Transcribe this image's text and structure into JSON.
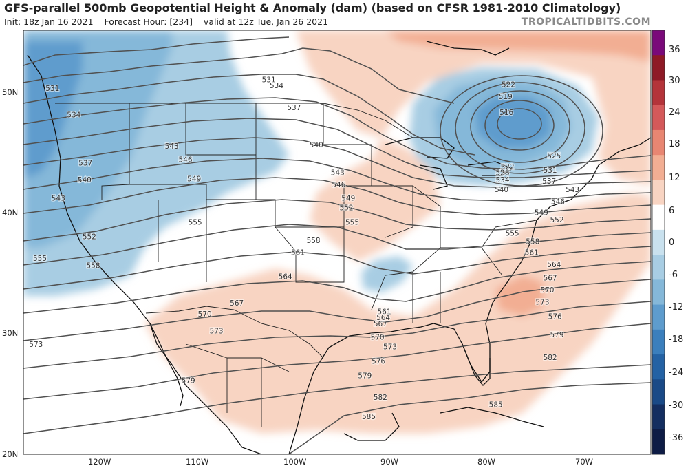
{
  "header": {
    "title": "GFS-parallel 500mb Geopotential Height & Anomaly (dam) (based on CFSR 1981-2010 Climatology)",
    "init": "Init: 18z Jan 16 2021",
    "forecast_hour": "Forecast Hour: [234]",
    "valid": "valid at 12z Tue, Jan 26 2021",
    "brand": "TROPICALTIDBITS.COM"
  },
  "axes": {
    "lat_labels": [
      "50N",
      "40N",
      "30N",
      "20N"
    ],
    "lon_labels": [
      "120W",
      "110W",
      "100W",
      "90W",
      "80W",
      "70W"
    ]
  },
  "colorbar": {
    "labels": [
      "36",
      "30",
      "24",
      "18",
      "12",
      "6",
      "0",
      "-6",
      "-12",
      "-18",
      "-24",
      "-30",
      "-36"
    ],
    "colors": [
      "#7a0a7a",
      "#8e1a26",
      "#b4343a",
      "#d4595a",
      "#e88672",
      "#f2ae93",
      "#f8d4c2",
      "#ffffff",
      "#c9e1ee",
      "#a8cde3",
      "#85b8d9",
      "#5e9ccd",
      "#3b7fbd",
      "#2462a4",
      "#1a4a87",
      "#142e60",
      "#0e1c45"
    ]
  },
  "contour_labels": [
    {
      "text": "531",
      "lon": -124.8,
      "lat": 50.6
    },
    {
      "text": "534",
      "lon": -122.6,
      "lat": 48.4
    },
    {
      "text": "537",
      "lon": -121.4,
      "lat": 44.4
    },
    {
      "text": "540",
      "lon": -121.5,
      "lat": 43.0
    },
    {
      "text": "543",
      "lon": -124.2,
      "lat": 41.5
    },
    {
      "text": "552",
      "lon": -121.0,
      "lat": 38.3
    },
    {
      "text": "555",
      "lon": -126.1,
      "lat": 36.5
    },
    {
      "text": "558",
      "lon": -120.6,
      "lat": 35.9
    },
    {
      "text": "543",
      "lon": -112.5,
      "lat": 45.8
    },
    {
      "text": "546",
      "lon": -111.1,
      "lat": 44.7
    },
    {
      "text": "549",
      "lon": -110.2,
      "lat": 43.1
    },
    {
      "text": "555",
      "lon": -110.1,
      "lat": 39.5
    },
    {
      "text": "561",
      "lon": -99.5,
      "lat": 37.0
    },
    {
      "text": "564",
      "lon": -100.8,
      "lat": 35.0
    },
    {
      "text": "567",
      "lon": -105.8,
      "lat": 32.8
    },
    {
      "text": "570",
      "lon": -109.1,
      "lat": 31.9
    },
    {
      "text": "573",
      "lon": -107.9,
      "lat": 30.5
    },
    {
      "text": "573",
      "lon": -126.5,
      "lat": 29.4
    },
    {
      "text": "579",
      "lon": -110.8,
      "lat": 26.4
    },
    {
      "text": "531",
      "lon": -102.5,
      "lat": 51.3
    },
    {
      "text": "534",
      "lon": -101.7,
      "lat": 50.8
    },
    {
      "text": "537",
      "lon": -99.9,
      "lat": 49.0
    },
    {
      "text": "540",
      "lon": -97.6,
      "lat": 45.9
    },
    {
      "text": "543",
      "lon": -95.4,
      "lat": 43.6
    },
    {
      "text": "546",
      "lon": -95.3,
      "lat": 42.6
    },
    {
      "text": "549",
      "lon": -94.3,
      "lat": 41.5
    },
    {
      "text": "552",
      "lon": -94.5,
      "lat": 40.7
    },
    {
      "text": "555",
      "lon": -93.9,
      "lat": 39.5
    },
    {
      "text": "558",
      "lon": -97.9,
      "lat": 38.0
    },
    {
      "text": "561",
      "lon": -90.6,
      "lat": 32.1
    },
    {
      "text": "564",
      "lon": -90.7,
      "lat": 31.6
    },
    {
      "text": "567",
      "lon": -91.0,
      "lat": 31.1
    },
    {
      "text": "570",
      "lon": -91.3,
      "lat": 30.0
    },
    {
      "text": "573",
      "lon": -90.0,
      "lat": 29.2
    },
    {
      "text": "576",
      "lon": -91.2,
      "lat": 28.0
    },
    {
      "text": "579",
      "lon": -92.6,
      "lat": 26.8
    },
    {
      "text": "582",
      "lon": -91.0,
      "lat": 25.0
    },
    {
      "text": "585",
      "lon": -92.2,
      "lat": 23.4
    },
    {
      "text": "522",
      "lon": -77.8,
      "lat": 50.9
    },
    {
      "text": "519",
      "lon": -78.1,
      "lat": 49.9
    },
    {
      "text": "516",
      "lon": -78.0,
      "lat": 48.6
    },
    {
      "text": "525",
      "lon": -73.1,
      "lat": 45.0
    },
    {
      "text": "522",
      "lon": -77.9,
      "lat": 44.1
    },
    {
      "text": "528",
      "lon": -78.4,
      "lat": 43.6
    },
    {
      "text": "531",
      "lon": -73.5,
      "lat": 43.8
    },
    {
      "text": "534",
      "lon": -78.4,
      "lat": 43.0
    },
    {
      "text": "537",
      "lon": -73.6,
      "lat": 42.9
    },
    {
      "text": "540",
      "lon": -78.5,
      "lat": 42.2
    },
    {
      "text": "543",
      "lon": -71.2,
      "lat": 42.2
    },
    {
      "text": "546",
      "lon": -72.7,
      "lat": 41.2
    },
    {
      "text": "549",
      "lon": -74.4,
      "lat": 40.3
    },
    {
      "text": "552",
      "lon": -72.8,
      "lat": 39.7
    },
    {
      "text": "555",
      "lon": -77.4,
      "lat": 38.6
    },
    {
      "text": "558",
      "lon": -75.3,
      "lat": 37.9
    },
    {
      "text": "561",
      "lon": -75.4,
      "lat": 37.0
    },
    {
      "text": "564",
      "lon": -73.1,
      "lat": 36.0
    },
    {
      "text": "567",
      "lon": -73.5,
      "lat": 34.9
    },
    {
      "text": "570",
      "lon": -73.8,
      "lat": 33.9
    },
    {
      "text": "573",
      "lon": -74.3,
      "lat": 32.9
    },
    {
      "text": "576",
      "lon": -73.0,
      "lat": 31.7
    },
    {
      "text": "579",
      "lon": -72.8,
      "lat": 30.2
    },
    {
      "text": "582",
      "lon": -73.5,
      "lat": 28.3
    },
    {
      "text": "585",
      "lon": -79.1,
      "lat": 24.4
    }
  ]
}
